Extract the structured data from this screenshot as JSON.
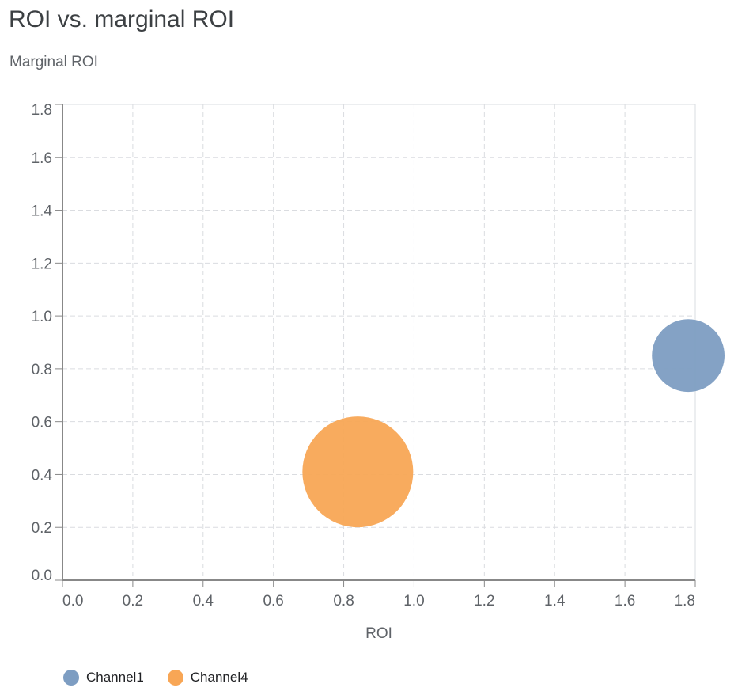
{
  "title": "ROI vs. marginal ROI",
  "subtitle": "Marginal ROI",
  "chart_data": {
    "type": "scatter",
    "title": "ROI vs. marginal ROI",
    "xlabel": "ROI",
    "ylabel": "Marginal ROI",
    "xlim": [
      0,
      1.8
    ],
    "ylim": [
      0,
      1.8
    ],
    "xticks": [
      "0.0",
      "0.2",
      "0.4",
      "0.6",
      "0.8",
      "1.0",
      "1.2",
      "1.4",
      "1.6",
      "1.8"
    ],
    "yticks": [
      "0.0",
      "0.2",
      "0.4",
      "0.6",
      "0.8",
      "1.0",
      "1.2",
      "1.4",
      "1.6",
      "1.8"
    ],
    "grid": true,
    "legend_placement": "bottom-left",
    "series": [
      {
        "name": "Channel1",
        "x": 1.78,
        "y": 0.85,
        "relative_size": 0.43,
        "color": "#7d9dc2"
      },
      {
        "name": "Channel4",
        "x": 0.84,
        "y": 0.41,
        "relative_size": 1.0,
        "color": "#f8a655"
      }
    ]
  }
}
